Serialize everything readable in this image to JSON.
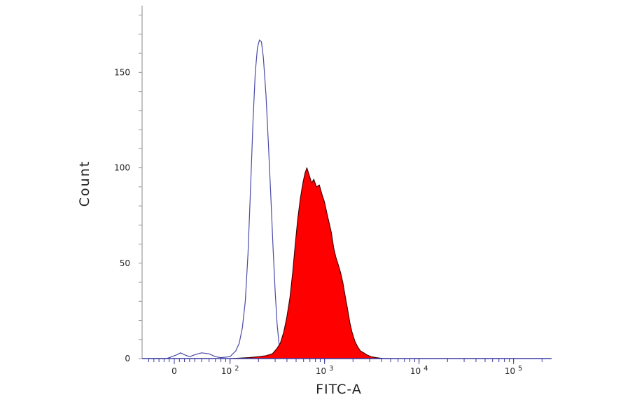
{
  "chart_data": {
    "type": "area",
    "xlabel": "FITC-A",
    "ylabel": "Count",
    "x_scale": "biexponential",
    "x_ticks": [
      {
        "value": 0,
        "base": "0",
        "exp": ""
      },
      {
        "value": 100,
        "base": "10",
        "exp": "2"
      },
      {
        "value": 1000,
        "base": "10",
        "exp": "3"
      },
      {
        "value": 10000,
        "base": "10",
        "exp": "4"
      },
      {
        "value": 100000,
        "base": "10",
        "exp": "5"
      }
    ],
    "y_ticks": [
      0,
      50,
      100,
      150
    ],
    "ylim": [
      0,
      185
    ],
    "grid": false,
    "series": [
      {
        "style": "outline",
        "color": "#4a4aa8",
        "points": [
          [
            -50,
            0
          ],
          [
            -15,
            0
          ],
          [
            -5,
            1
          ],
          [
            0,
            1.5
          ],
          [
            5,
            2
          ],
          [
            12,
            3
          ],
          [
            20,
            2
          ],
          [
            30,
            1
          ],
          [
            40,
            2
          ],
          [
            50,
            3
          ],
          [
            60,
            2.5
          ],
          [
            70,
            1
          ],
          [
            80,
            0.5
          ],
          [
            100,
            1
          ],
          [
            115,
            4
          ],
          [
            125,
            8
          ],
          [
            135,
            16
          ],
          [
            145,
            30
          ],
          [
            155,
            55
          ],
          [
            165,
            90
          ],
          [
            175,
            125
          ],
          [
            185,
            150
          ],
          [
            195,
            163
          ],
          [
            205,
            167
          ],
          [
            215,
            166
          ],
          [
            225,
            158
          ],
          [
            240,
            138
          ],
          [
            255,
            112
          ],
          [
            270,
            85
          ],
          [
            285,
            58
          ],
          [
            300,
            35
          ],
          [
            315,
            18
          ],
          [
            330,
            8
          ],
          [
            350,
            3
          ],
          [
            380,
            1
          ],
          [
            450,
            0.5
          ],
          [
            600,
            0
          ],
          [
            1000,
            0
          ],
          [
            3000,
            0
          ],
          [
            5000,
            0
          ]
        ]
      },
      {
        "style": "filled",
        "color": "#ff0000",
        "points": [
          [
            100,
            0
          ],
          [
            160,
            0.5
          ],
          [
            200,
            1
          ],
          [
            240,
            1.5
          ],
          [
            280,
            2.5
          ],
          [
            310,
            5
          ],
          [
            340,
            8
          ],
          [
            370,
            14
          ],
          [
            400,
            22
          ],
          [
            430,
            32
          ],
          [
            460,
            45
          ],
          [
            490,
            60
          ],
          [
            520,
            73
          ],
          [
            555,
            84
          ],
          [
            590,
            92
          ],
          [
            620,
            97
          ],
          [
            650,
            100
          ],
          [
            690,
            96
          ],
          [
            730,
            92
          ],
          [
            770,
            94
          ],
          [
            820,
            90
          ],
          [
            880,
            91
          ],
          [
            940,
            86
          ],
          [
            1000,
            82
          ],
          [
            1060,
            76
          ],
          [
            1120,
            71
          ],
          [
            1180,
            66
          ],
          [
            1250,
            58
          ],
          [
            1320,
            53
          ],
          [
            1400,
            49
          ],
          [
            1480,
            45
          ],
          [
            1560,
            40
          ],
          [
            1650,
            33
          ],
          [
            1750,
            26
          ],
          [
            1850,
            19
          ],
          [
            1950,
            14
          ],
          [
            2100,
            9
          ],
          [
            2250,
            6
          ],
          [
            2400,
            4
          ],
          [
            2600,
            3
          ],
          [
            2800,
            2
          ],
          [
            3100,
            1
          ],
          [
            3500,
            0.5
          ],
          [
            4200,
            0
          ]
        ]
      }
    ]
  }
}
